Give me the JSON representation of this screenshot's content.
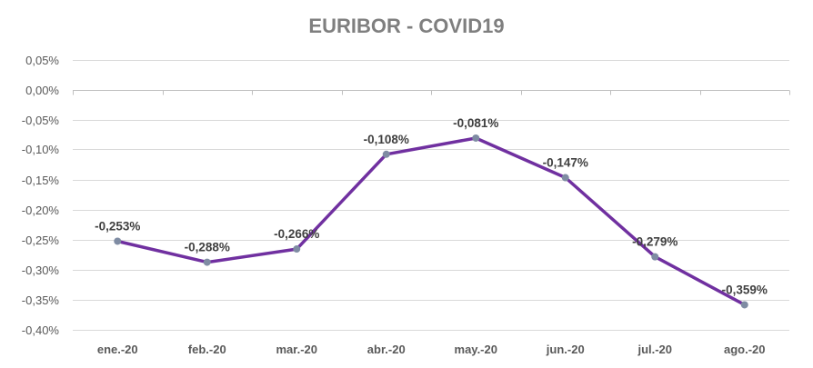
{
  "chart_data": {
    "type": "line",
    "title": "EURIBOR - COVID19",
    "xlabel": "",
    "ylabel": "",
    "categories": [
      "ene.-20",
      "feb.-20",
      "mar.-20",
      "abr.-20",
      "may.-20",
      "jun.-20",
      "jul.-20",
      "ago.-20"
    ],
    "series": [
      {
        "values": [
          -0.253,
          -0.288,
          -0.266,
          -0.108,
          -0.081,
          -0.147,
          -0.279,
          -0.359
        ],
        "data_labels": [
          "-0,253%",
          "-0,288%",
          "-0,266%",
          "-0,108%",
          "-0,081%",
          "-0,147%",
          "-0,279%",
          "-0,359%"
        ],
        "line_color": "#7030a0",
        "marker_color": "#7f8ca3"
      }
    ],
    "ylim": [
      -0.4,
      0.05
    ],
    "yticks": [
      0.05,
      0.0,
      -0.05,
      -0.1,
      -0.15,
      -0.2,
      -0.25,
      -0.3,
      -0.35,
      -0.4
    ],
    "ytick_labels": [
      "0,05%",
      "0,00%",
      "-0,05%",
      "-0,10%",
      "-0,15%",
      "-0,20%",
      "-0,25%",
      "-0,30%",
      "-0,35%",
      "-0,40%"
    ],
    "grid": true,
    "legend": "none"
  },
  "colors": {
    "grid": "#d9d9d9",
    "axis": "#bfbfbf",
    "title": "#7f7f7f"
  }
}
